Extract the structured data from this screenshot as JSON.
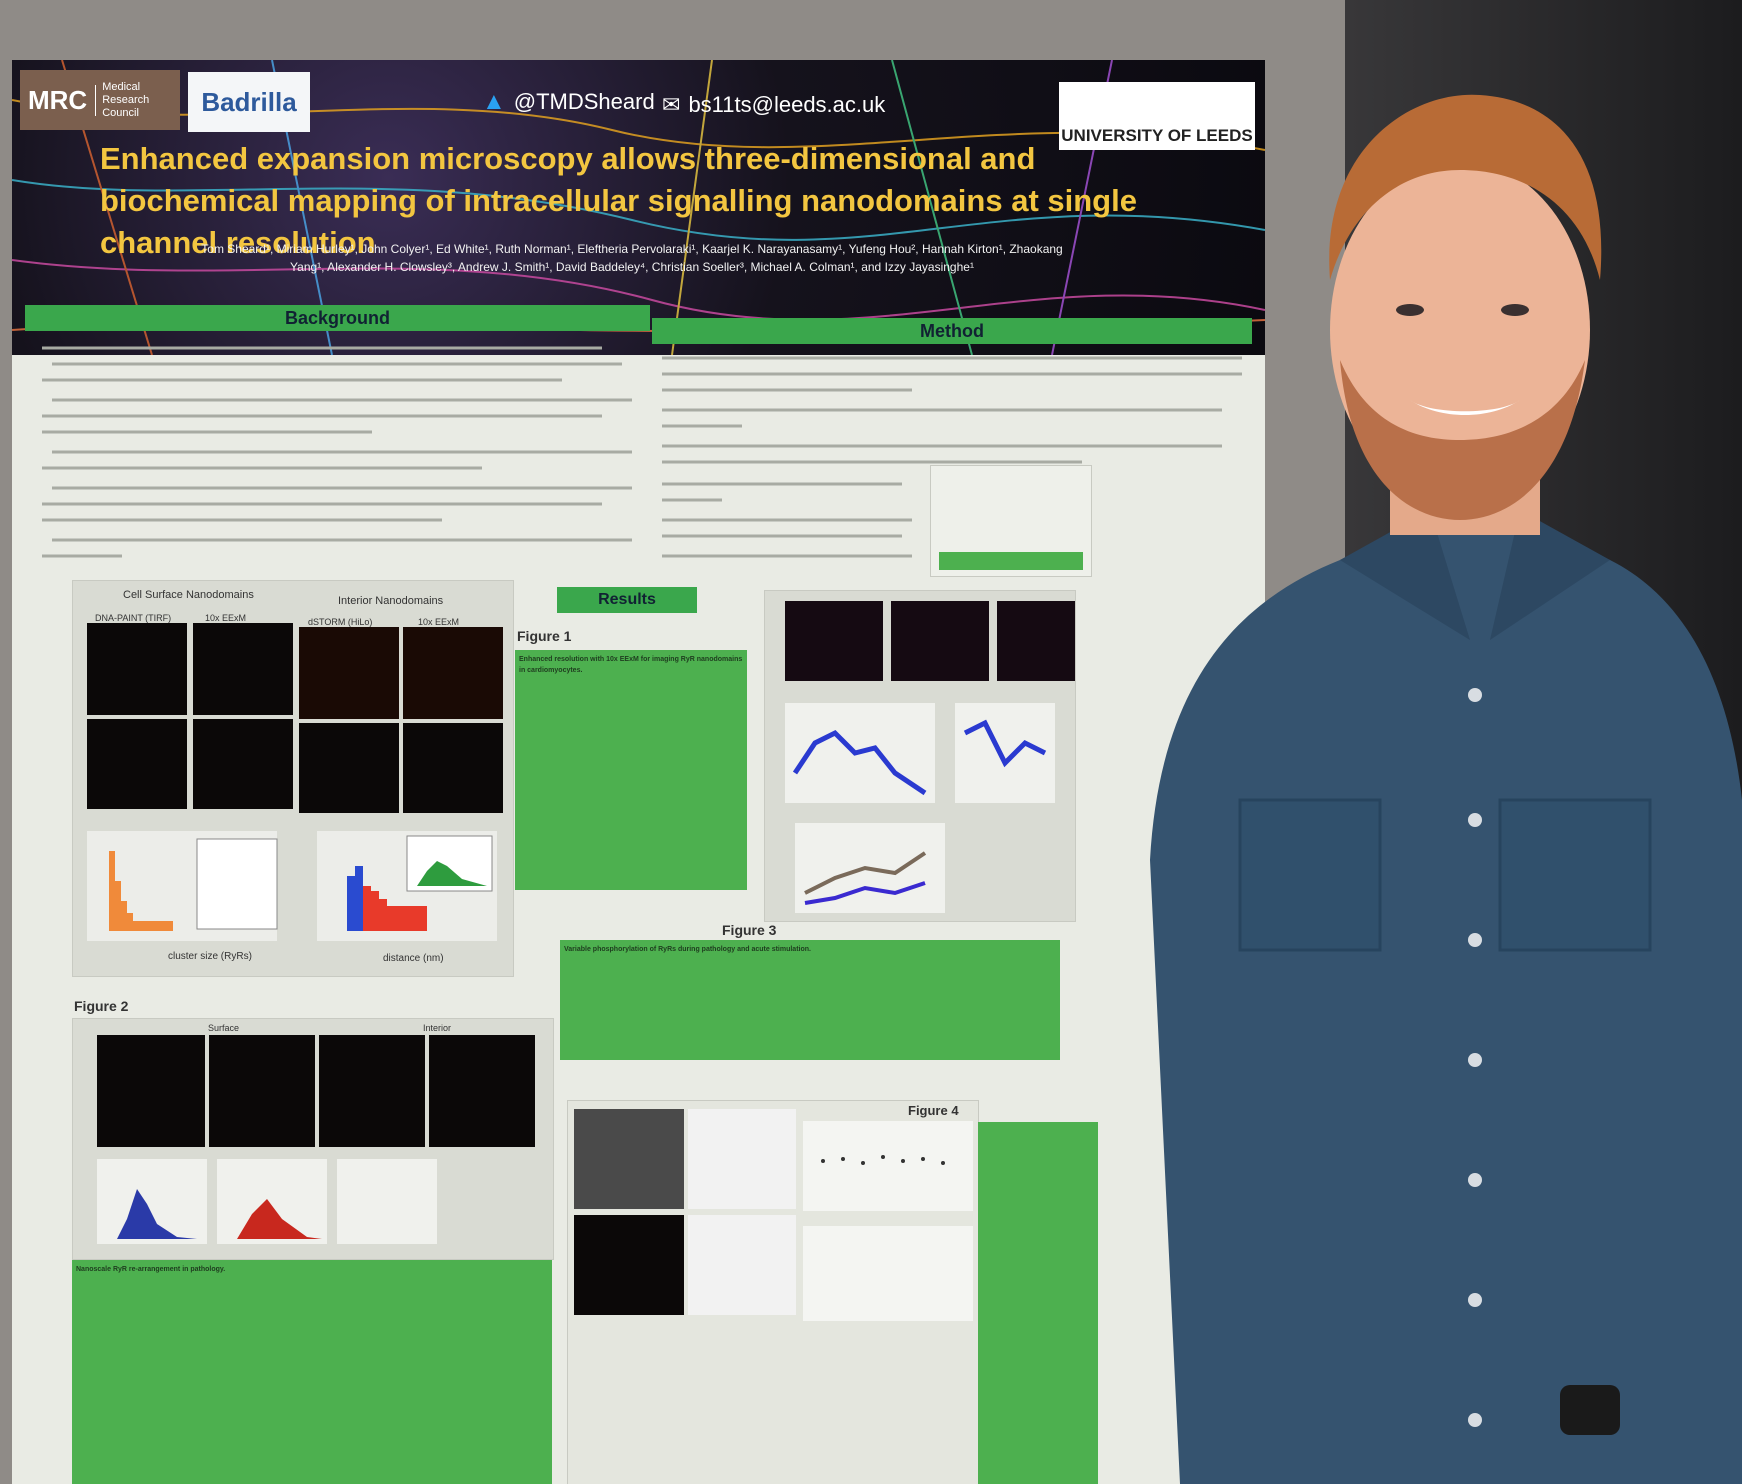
{
  "poster": {
    "logos": {
      "mrc_abbr": "MRC",
      "mrc_name": "Medical Research Council",
      "badrilla": "Badrilla",
      "university": "UNIVERSITY OF LEEDS"
    },
    "contact": {
      "twitter": "@TMDSheard",
      "email": "bs11ts@leeds.ac.uk"
    },
    "title": "Enhanced expansion microscopy allows three-dimensional and biochemical mapping of intracellular signalling nanodomains at single channel resolution",
    "authors": "Tom Sheard¹, Miriam Hurley¹, John Colyer¹, Ed White¹, Ruth Norman¹, Eleftheria Pervolaraki¹, Kaarjel K. Narayanasamy¹, Yufeng Hou², Hannah Kirton¹, Zhaokang Yang¹, Alexander H. Clowsley³, Andrew J. Smith¹, David Baddeley⁴, Christian Soeller³, Michael A. Colman¹, and Izzy Jayasinghe¹",
    "sections": {
      "background": "Background",
      "method": "Method",
      "results": "Results"
    },
    "figures": {
      "fig1": "Figure 1",
      "fig2": "Figure 2",
      "fig3": "Figure 3",
      "fig4": "Figure 4"
    },
    "fig1_labels": {
      "surface": "Cell Surface Nanodomains",
      "interior": "Interior Nanodomains",
      "dna_paint": "DNA-PAINT (TIRF)",
      "eexm1": "10x EExM",
      "dstorm": "dSTORM (HiLo)",
      "eexm2": "10x EExM",
      "cluster_size": "cluster size (RyRs)",
      "distance": "distance (nm)"
    },
    "fig1_caption_title": "Enhanced resolution with 10x EExM for imaging RyR nanodomains in cardiomyocytes.",
    "fig2_labels": {
      "surface": "Surface",
      "interior": "Interior"
    },
    "fig3_caption_title": "Variable phosphorylation of RyRs during pathology and acute stimulation.",
    "fig2_caption_title": "Nanoscale RyR re-arrangement in pathology."
  },
  "colors": {
    "section_green": "#3aa74c",
    "title_yellow": "#f3c640",
    "shirt_blue": "#35536f",
    "hair_ginger": "#b86b36"
  }
}
